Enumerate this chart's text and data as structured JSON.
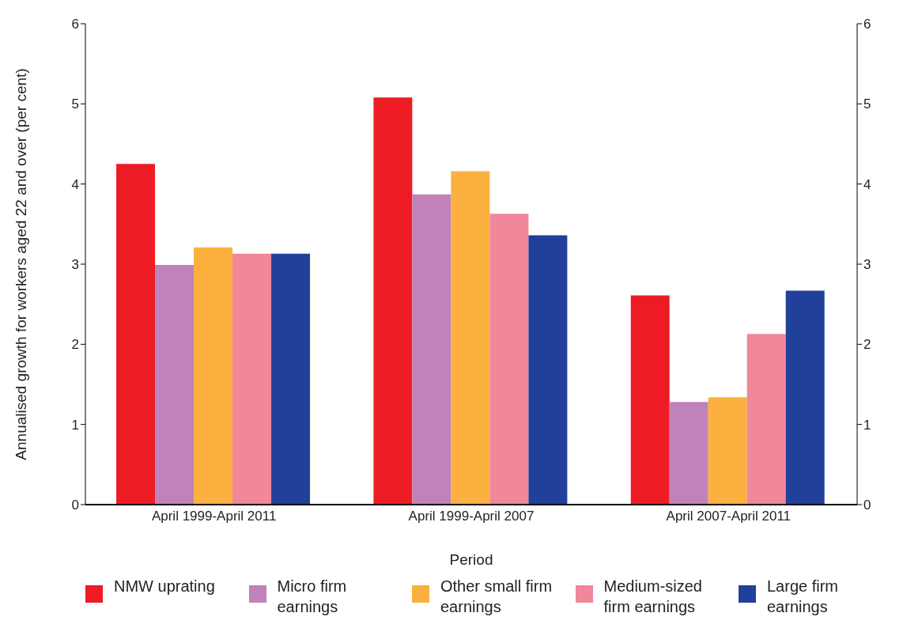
{
  "chart_data": {
    "type": "bar",
    "xlabel": "Period",
    "ylabel": "Annualised growth for workers aged 22 and over (per cent)",
    "categories": [
      "April 1999-April 2011",
      "April 1999-April 2007",
      "April 2007-April 2011"
    ],
    "series": [
      {
        "name": "NMW uprating",
        "color": "#ed1c24",
        "values": [
          4.25,
          5.08,
          2.61
        ]
      },
      {
        "name": "Micro firm earnings",
        "color": "#bf83b9",
        "values": [
          2.99,
          3.87,
          1.28
        ]
      },
      {
        "name": "Other small firm earnings",
        "color": "#fbb040",
        "values": [
          3.21,
          4.16,
          1.34
        ]
      },
      {
        "name": "Medium-sized firm earnings",
        "color": "#f1879a",
        "values": [
          3.13,
          3.63,
          2.13
        ]
      },
      {
        "name": "Large firm earnings",
        "color": "#21409a",
        "values": [
          3.13,
          3.36,
          2.67
        ]
      }
    ],
    "ylim": [
      0,
      6
    ],
    "yticks": [
      0,
      1,
      2,
      3,
      4,
      5,
      6
    ],
    "y2lim": [
      0,
      6
    ],
    "y2ticks": [
      0,
      1,
      2,
      3,
      4,
      5,
      6
    ],
    "grid": false,
    "legend": "bottom"
  }
}
